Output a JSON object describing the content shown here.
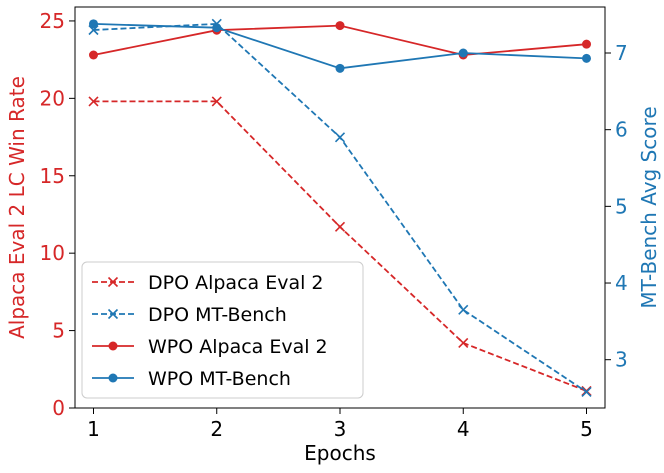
{
  "chart_data": {
    "type": "line",
    "title": "",
    "xlabel": "Epochs",
    "ylabel_left": "Alpaca Eval 2 LC Win Rate",
    "ylabel_right": "MT-Bench Avg Score",
    "x": [
      1,
      2,
      3,
      4,
      5
    ],
    "x_tick_labels": [
      "1",
      "2",
      "3",
      "4",
      "5"
    ],
    "ylim_left": [
      0,
      25.9
    ],
    "yticks_left": [
      "0",
      "5",
      "10",
      "15",
      "20",
      "25"
    ],
    "ylim_right": [
      2.37,
      7.6
    ],
    "yticks_right": [
      "3",
      "4",
      "5",
      "6",
      "7"
    ],
    "grid": false,
    "legend_position": "lower-left",
    "colors": {
      "left_axis": "#d62728",
      "right_axis": "#1f77b4"
    },
    "series": [
      {
        "name": "DPO Alpaca Eval 2",
        "axis": "left",
        "color": "#d62728",
        "linestyle": "dashed",
        "marker": "x",
        "values": [
          19.8,
          19.8,
          11.7,
          4.2,
          1.1
        ]
      },
      {
        "name": "DPO MT-Bench",
        "axis": "right",
        "color": "#1f77b4",
        "linestyle": "dashed",
        "marker": "x",
        "values": [
          7.3,
          7.38,
          5.9,
          3.65,
          2.58
        ]
      },
      {
        "name": "WPO Alpaca Eval 2",
        "axis": "left",
        "color": "#d62728",
        "linestyle": "solid",
        "marker": "circle",
        "values": [
          22.8,
          24.4,
          24.7,
          22.8,
          23.5
        ]
      },
      {
        "name": "WPO MT-Bench",
        "axis": "right",
        "color": "#1f77b4",
        "linestyle": "solid",
        "marker": "circle",
        "values": [
          7.38,
          7.33,
          6.8,
          7.0,
          6.93
        ]
      }
    ]
  }
}
